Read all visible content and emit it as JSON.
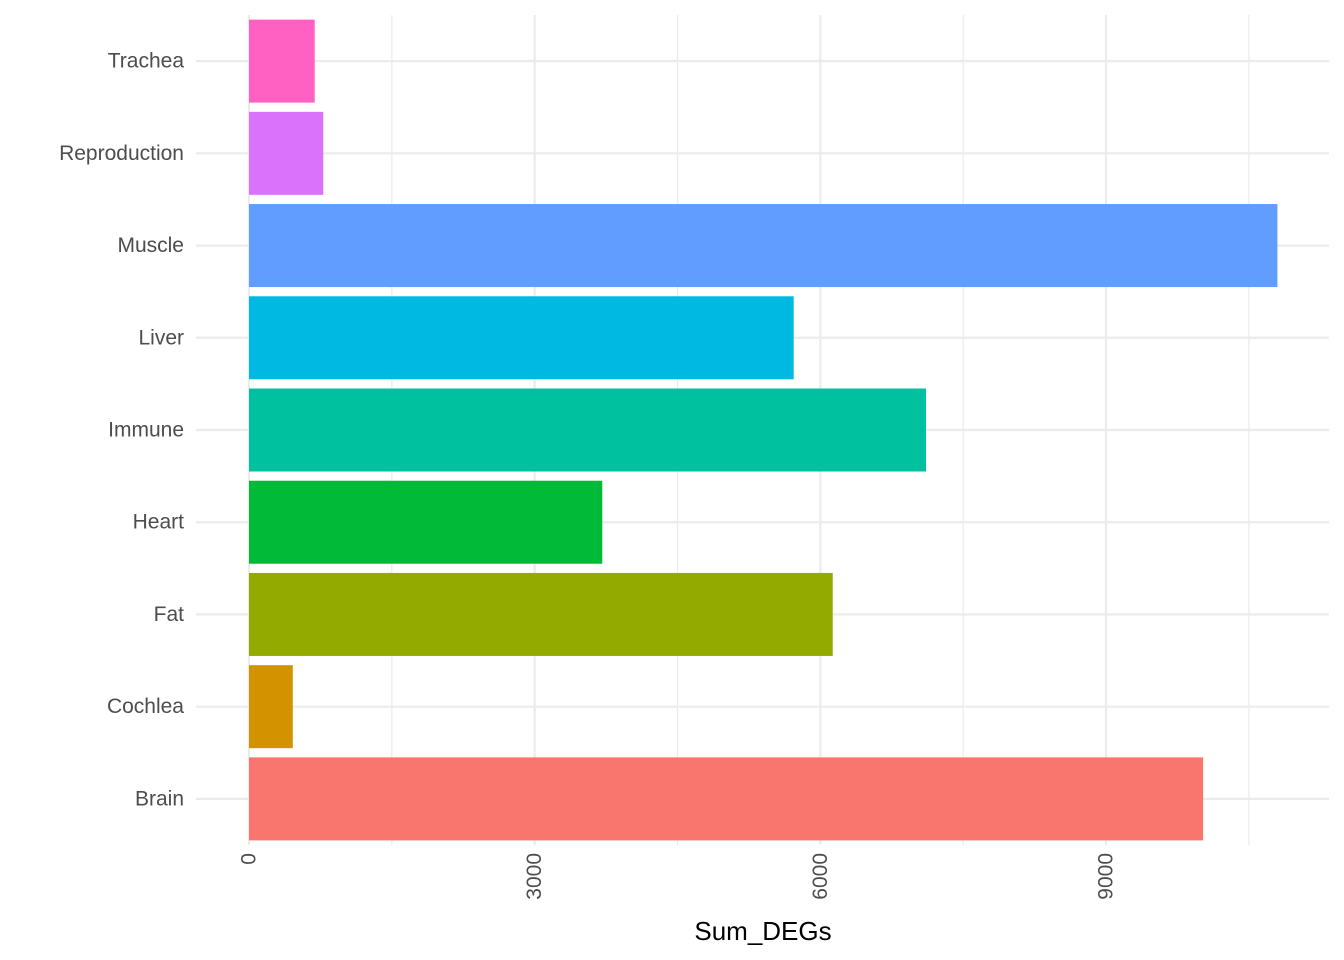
{
  "chart_data": {
    "type": "bar",
    "orientation": "horizontal",
    "categories": [
      "Brain",
      "Cochlea",
      "Fat",
      "Heart",
      "Immune",
      "Liver",
      "Muscle",
      "Reproduction",
      "Trachea"
    ],
    "values": [
      10020,
      460,
      6130,
      3710,
      7110,
      5720,
      10800,
      780,
      690
    ],
    "colors": [
      "#F8766D",
      "#D39200",
      "#93AA00",
      "#00BA38",
      "#00C19F",
      "#00B9E3",
      "#619CFF",
      "#DB72FB",
      "#FF61C3"
    ],
    "xlabel": "Sum_DEGs",
    "ylabel": "",
    "x_ticks": [
      0,
      3000,
      6000,
      9000
    ],
    "x_tick_labels": [
      "0",
      "3000",
      "6000",
      "9000"
    ],
    "xlim": [
      0,
      11370
    ],
    "grid": true,
    "legend": "none"
  }
}
